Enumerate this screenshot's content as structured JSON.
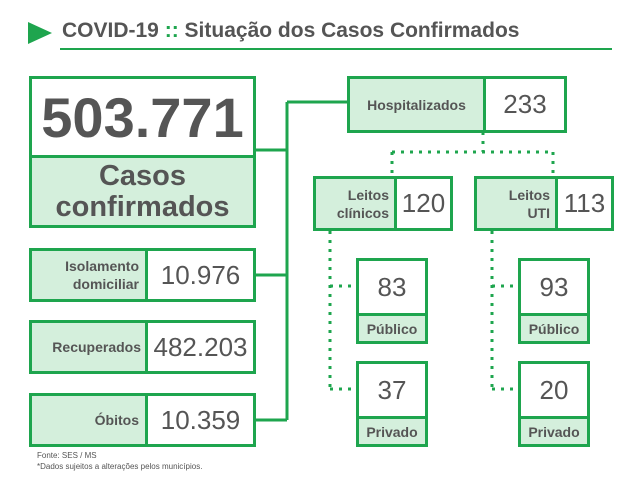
{
  "header": {
    "title_prefix": "COVID-19",
    "separator": "::",
    "title_rest": "Situação dos Casos Confirmados",
    "accent_color": "#1ea54e"
  },
  "total": {
    "value": "503.771",
    "label_line1": "Casos",
    "label_line2": "confirmados"
  },
  "isolamento": {
    "label_line1": "Isolamento",
    "label_line2": "domiciliar",
    "value": "10.976"
  },
  "recuperados": {
    "label": "Recuperados",
    "value": "482.203"
  },
  "obitos": {
    "label": "Óbitos",
    "value": "10.359"
  },
  "hospitalizados": {
    "label": "Hospitalizados",
    "value": "233"
  },
  "leitos_clinicos": {
    "label_line1": "Leitos",
    "label_line2": "clínicos",
    "value": "120",
    "publico": {
      "value": "83",
      "label": "Público"
    },
    "privado": {
      "value": "37",
      "label": "Privado"
    }
  },
  "leitos_uti": {
    "label_line1": "Leitos",
    "label_line2": "UTI",
    "value": "113",
    "publico": {
      "value": "93",
      "label": "Público"
    },
    "privado": {
      "value": "20",
      "label": "Privado"
    }
  },
  "footer": {
    "source": "Fonte: SES / MS",
    "note": "*Dados sujeitos a alterações pelos municípios."
  }
}
